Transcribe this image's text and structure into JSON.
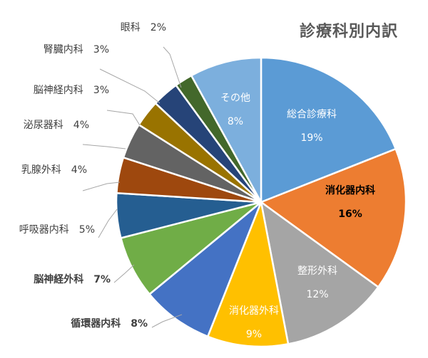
{
  "chart_data": {
    "type": "pie",
    "title": "診療科別内訳",
    "slices": [
      {
        "label": "総合診療科",
        "value": 19,
        "value_label": "19%",
        "color": "#5B9BD5"
      },
      {
        "label": "消化器内科",
        "value": 16,
        "value_label": "16%",
        "color": "#ED7D31"
      },
      {
        "label": "整形外科",
        "value": 12,
        "value_label": "12%",
        "color": "#A5A5A5"
      },
      {
        "label": "消化器外科",
        "value": 9,
        "value_label": "9%",
        "color": "#FFC000"
      },
      {
        "label": "循環器内科",
        "value": 8,
        "value_label": "8%",
        "color": "#4472C4"
      },
      {
        "label": "脳神経外科",
        "value": 7,
        "value_label": "7%",
        "color": "#70AD47"
      },
      {
        "label": "呼吸器内科",
        "value": 5,
        "value_label": "5%",
        "color": "#255E91"
      },
      {
        "label": "乳腺外科",
        "value": 4,
        "value_label": "4%",
        "color": "#9E480E"
      },
      {
        "label": "泌尿器科",
        "value": 4,
        "value_label": "4%",
        "color": "#636363"
      },
      {
        "label": "脳神経内科",
        "value": 3,
        "value_label": "3%",
        "color": "#997300"
      },
      {
        "label": "腎臓内科",
        "value": 3,
        "value_label": "3%",
        "color": "#264478"
      },
      {
        "label": "眼科",
        "value": 2,
        "value_label": "2%",
        "color": "#43682B"
      },
      {
        "label": "その他",
        "value": 8,
        "value_label": "8%",
        "color": "#7CAFDD"
      }
    ]
  }
}
